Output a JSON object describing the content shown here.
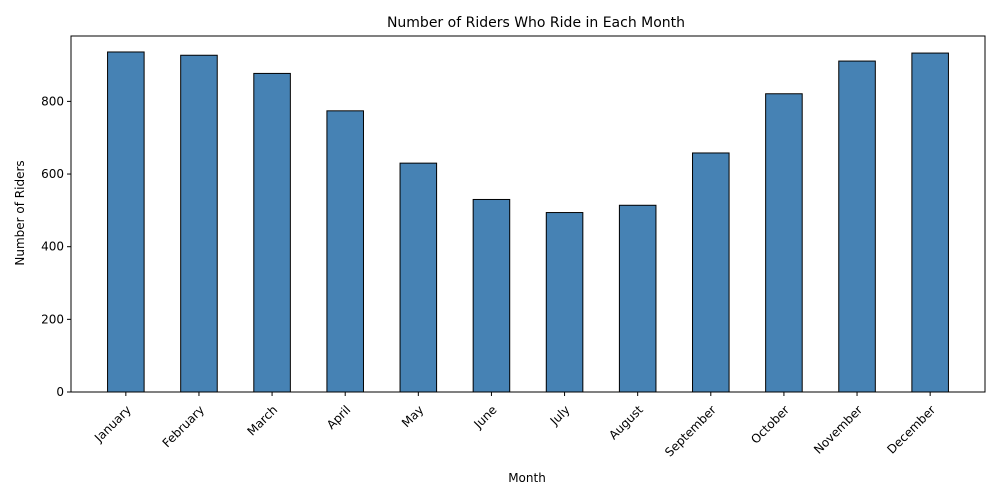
{
  "chart_data": {
    "type": "bar",
    "title": "Number of Riders Who Ride in Each Month",
    "xlabel": "Month",
    "ylabel": "Number of Riders",
    "categories": [
      "January",
      "February",
      "March",
      "April",
      "May",
      "June",
      "July",
      "August",
      "September",
      "October",
      "November",
      "December"
    ],
    "values": [
      936,
      927,
      877,
      774,
      630,
      530,
      494,
      514,
      658,
      821,
      911,
      933
    ],
    "ylim": [
      0,
      980
    ],
    "yticks": [
      0,
      200,
      400,
      600,
      800
    ],
    "bar_color": "#4682b4",
    "edge_color": "#000000",
    "grid": false,
    "legend": "none"
  }
}
